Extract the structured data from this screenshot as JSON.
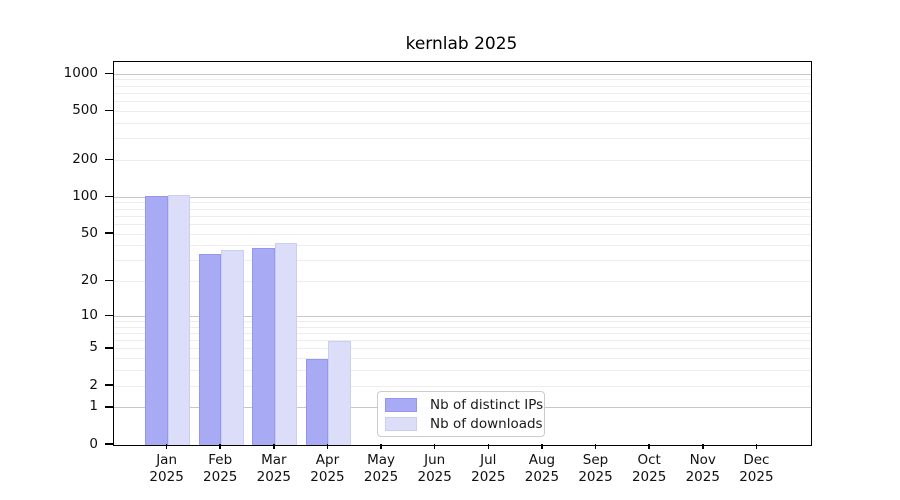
{
  "title": "kernlab 2025",
  "chart_data": {
    "type": "bar",
    "title": "kernlab 2025",
    "categories": [
      "Jan 2025",
      "Feb 2025",
      "Mar 2025",
      "Apr 2025",
      "May 2025",
      "Jun 2025",
      "Jul 2025",
      "Aug 2025",
      "Sep 2025",
      "Oct 2025",
      "Nov 2025",
      "Dec 2025"
    ],
    "series": [
      {
        "name": "Nb of distinct IPs",
        "values": [
          103,
          34,
          38,
          4,
          0,
          0,
          0,
          0,
          0,
          0,
          0,
          0
        ],
        "fill": "#a9aaf4",
        "edge": "#9597ee"
      },
      {
        "name": "Nb of downloads",
        "values": [
          104,
          37,
          42,
          6,
          0,
          0,
          0,
          0,
          0,
          0,
          0,
          0
        ],
        "fill": "#dcddf9",
        "edge": "#cccdf4"
      }
    ],
    "xlabel": "",
    "ylabel": "",
    "y_scale": "log10(value+1)",
    "y_ticks": [
      0,
      1,
      2,
      5,
      10,
      20,
      50,
      100,
      200,
      500,
      1000
    ],
    "y_major_gridlines": [
      1,
      10,
      100,
      1000
    ],
    "y_minor_gridlines": [
      2,
      3,
      4,
      5,
      6,
      7,
      8,
      9,
      20,
      30,
      40,
      50,
      60,
      70,
      80,
      90,
      200,
      300,
      400,
      500,
      600,
      700,
      800,
      900
    ],
    "ylim": [
      0,
      1100
    ],
    "grid": true,
    "legend_position": "inside-bottom-center",
    "colors": {
      "major_grid": "#c7c7c7",
      "minor_grid": "#ededed",
      "axis": "#000000",
      "text": "#111111"
    }
  }
}
